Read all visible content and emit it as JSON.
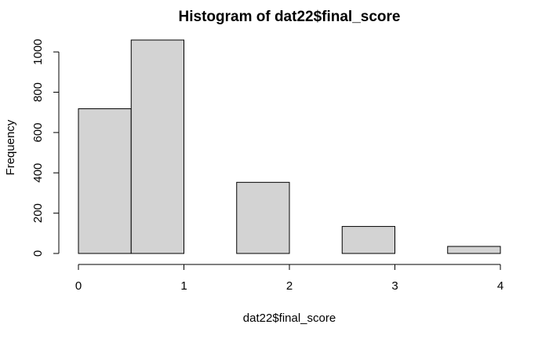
{
  "chart_data": {
    "type": "histogram",
    "title": "Histogram of dat22$final_score",
    "xlabel": "dat22$final_score",
    "ylabel": "Frequency",
    "bins": [
      {
        "start": 0.0,
        "end": 0.5,
        "count": 718
      },
      {
        "start": 0.5,
        "end": 1.0,
        "count": 1059
      },
      {
        "start": 1.0,
        "end": 1.5,
        "count": 0
      },
      {
        "start": 1.5,
        "end": 2.0,
        "count": 353
      },
      {
        "start": 2.0,
        "end": 2.5,
        "count": 0
      },
      {
        "start": 2.5,
        "end": 3.0,
        "count": 134
      },
      {
        "start": 3.0,
        "end": 3.5,
        "count": 0
      },
      {
        "start": 3.5,
        "end": 4.0,
        "count": 35
      }
    ],
    "xlim": [
      0,
      4
    ],
    "ylim": [
      0,
      1059
    ],
    "xticks": [
      0,
      1,
      2,
      3,
      4
    ],
    "yticks": [
      0,
      200,
      400,
      600,
      800,
      1000
    ],
    "bar_fill": "#d3d3d3",
    "bar_stroke": "#000000",
    "grid": false
  }
}
